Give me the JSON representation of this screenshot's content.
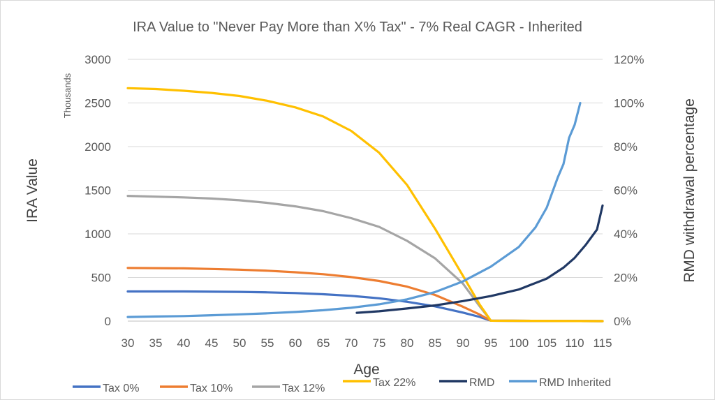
{
  "chart_data": {
    "type": "line",
    "title": "IRA Value to \"Never Pay More than X% Tax\" - 7% Real CAGR - Inherited",
    "xlabel": "Age",
    "ylabel": "IRA Value",
    "ylabel_units": "Thousands",
    "y2label": "RMD withdrawal percentage",
    "xlim": [
      30,
      115
    ],
    "ylim": [
      0,
      3000
    ],
    "y2lim": [
      0,
      1.2
    ],
    "x_ticks": [
      "30",
      "35",
      "40",
      "45",
      "50",
      "55",
      "60",
      "65",
      "70",
      "75",
      "80",
      "85",
      "90",
      "95",
      "100",
      "105",
      "110",
      "115"
    ],
    "y_ticks": [
      "0",
      "500",
      "1000",
      "1500",
      "2000",
      "2500",
      "3000"
    ],
    "y2_ticks": [
      "0%",
      "20%",
      "40%",
      "60%",
      "80%",
      "100%",
      "120%"
    ],
    "grid": true,
    "legend_position": "bottom",
    "series": [
      {
        "name": "Tax 0%",
        "axis": "left",
        "color": "#4472c4",
        "points": [
          [
            30,
            340
          ],
          [
            40,
            340
          ],
          [
            50,
            335
          ],
          [
            55,
            330
          ],
          [
            60,
            322
          ],
          [
            65,
            308
          ],
          [
            70,
            290
          ],
          [
            75,
            262
          ],
          [
            80,
            222
          ],
          [
            85,
            170
          ],
          [
            90,
            98
          ],
          [
            93,
            48
          ],
          [
            95,
            5
          ],
          [
            115,
            0
          ]
        ]
      },
      {
        "name": "Tax 10%",
        "axis": "left",
        "color": "#ed7d31",
        "points": [
          [
            30,
            610
          ],
          [
            40,
            605
          ],
          [
            45,
            598
          ],
          [
            50,
            590
          ],
          [
            55,
            578
          ],
          [
            60,
            560
          ],
          [
            65,
            538
          ],
          [
            70,
            505
          ],
          [
            75,
            460
          ],
          [
            80,
            395
          ],
          [
            85,
            300
          ],
          [
            90,
            165
          ],
          [
            93,
            75
          ],
          [
            95,
            5
          ],
          [
            115,
            0
          ]
        ]
      },
      {
        "name": "Tax 12%",
        "axis": "left",
        "color": "#a5a5a5",
        "points": [
          [
            30,
            1435
          ],
          [
            40,
            1418
          ],
          [
            45,
            1405
          ],
          [
            50,
            1385
          ],
          [
            55,
            1355
          ],
          [
            60,
            1315
          ],
          [
            65,
            1260
          ],
          [
            70,
            1180
          ],
          [
            75,
            1080
          ],
          [
            80,
            920
          ],
          [
            85,
            720
          ],
          [
            90,
            430
          ],
          [
            93,
            170
          ],
          [
            95,
            5
          ],
          [
            115,
            0
          ]
        ]
      },
      {
        "name": "Tax 22%",
        "axis": "left",
        "color": "#ffc000",
        "points": [
          [
            30,
            2670
          ],
          [
            35,
            2660
          ],
          [
            40,
            2640
          ],
          [
            45,
            2615
          ],
          [
            50,
            2580
          ],
          [
            55,
            2525
          ],
          [
            60,
            2450
          ],
          [
            65,
            2345
          ],
          [
            70,
            2180
          ],
          [
            75,
            1930
          ],
          [
            80,
            1560
          ],
          [
            85,
            1060
          ],
          [
            90,
            520
          ],
          [
            93,
            190
          ],
          [
            95,
            5
          ],
          [
            115,
            0
          ]
        ]
      },
      {
        "name": "RMD",
        "axis": "right",
        "color": "#203864",
        "points": [
          [
            71,
            0.038
          ],
          [
            75,
            0.045
          ],
          [
            80,
            0.058
          ],
          [
            85,
            0.072
          ],
          [
            90,
            0.092
          ],
          [
            95,
            0.115
          ],
          [
            100,
            0.145
          ],
          [
            105,
            0.195
          ],
          [
            108,
            0.245
          ],
          [
            110,
            0.29
          ],
          [
            112,
            0.35
          ],
          [
            114,
            0.42
          ],
          [
            115,
            0.53
          ]
        ]
      },
      {
        "name": "RMD Inherited",
        "axis": "right",
        "color": "#5b9bd5",
        "points": [
          [
            30,
            0.019
          ],
          [
            35,
            0.021
          ],
          [
            40,
            0.023
          ],
          [
            45,
            0.027
          ],
          [
            50,
            0.031
          ],
          [
            55,
            0.036
          ],
          [
            60,
            0.042
          ],
          [
            65,
            0.05
          ],
          [
            70,
            0.061
          ],
          [
            75,
            0.077
          ],
          [
            80,
            0.1
          ],
          [
            85,
            0.133
          ],
          [
            90,
            0.182
          ],
          [
            95,
            0.25
          ],
          [
            100,
            0.34
          ],
          [
            103,
            0.43
          ],
          [
            105,
            0.52
          ],
          [
            107,
            0.66
          ],
          [
            108,
            0.72
          ],
          [
            109,
            0.84
          ],
          [
            110,
            0.9
          ],
          [
            111,
            1.0
          ]
        ]
      }
    ]
  }
}
